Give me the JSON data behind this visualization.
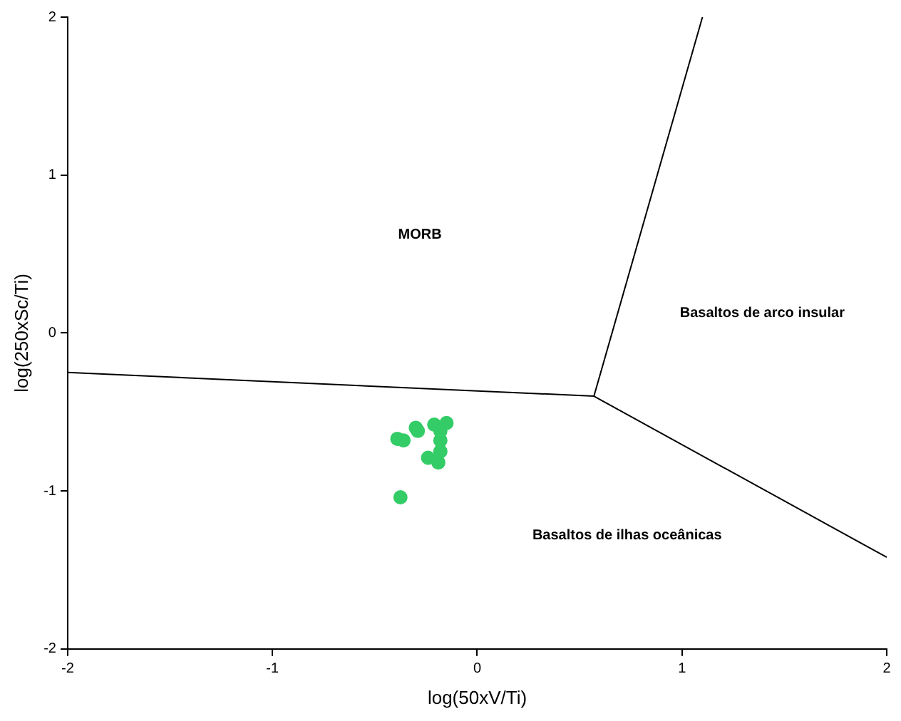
{
  "chart_data": {
    "type": "scatter",
    "xlabel": "log(50xV/Ti)",
    "ylabel": "log(250xSc/Ti)",
    "xlim": [
      -2,
      2
    ],
    "xticks": [
      -2,
      -1,
      0,
      1,
      2
    ],
    "ylim": [
      -2,
      2
    ],
    "yticks": [
      -2,
      -1,
      0,
      1,
      2
    ],
    "grid": false,
    "legend": false,
    "series": [
      {
        "marker": "circle",
        "color": "#33cc66",
        "x": [
          -0.39,
          -0.36,
          -0.3,
          -0.29,
          -0.21,
          -0.15,
          -0.18,
          -0.18,
          -0.18,
          -0.24,
          -0.19,
          -0.375
        ],
        "values": [
          -0.67,
          -0.68,
          -0.6,
          -0.62,
          -0.58,
          -0.57,
          -0.62,
          -0.68,
          -0.75,
          -0.79,
          -0.82,
          -1.04
        ]
      },
      {
        "type": "line",
        "marker": "none",
        "color": "#000000",
        "x": [
          -2,
          0.57
        ],
        "values": [
          -0.25,
          -0.4
        ]
      },
      {
        "type": "line",
        "marker": "none",
        "color": "#000000",
        "x": [
          0.57,
          1.1
        ],
        "values": [
          -0.4,
          2
        ]
      },
      {
        "type": "line",
        "marker": "none",
        "color": "#000000",
        "x": [
          0.57,
          2
        ],
        "values": [
          -0.4,
          -1.42
        ]
      }
    ],
    "annotations": [
      "MORB",
      "Basaltos de arco insular",
      "Basaltos de ilhas oceânicas"
    ]
  }
}
